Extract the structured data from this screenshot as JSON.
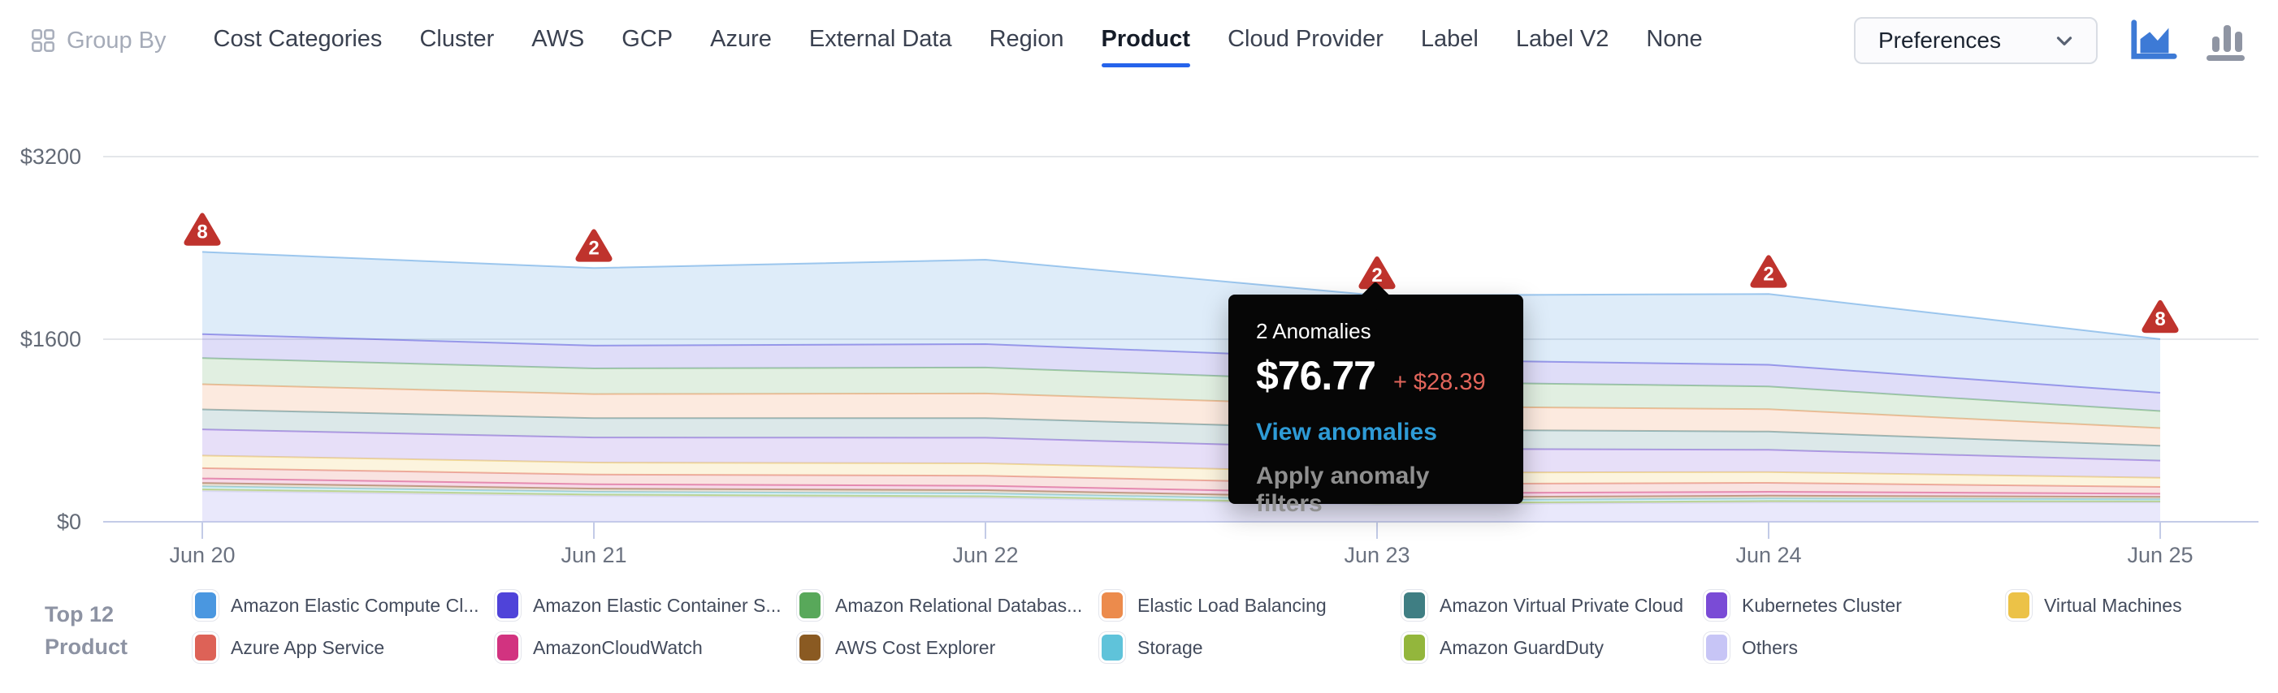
{
  "header": {
    "group_by": {
      "label": "Group By"
    },
    "tabs": [
      {
        "label": "Cost Categories"
      },
      {
        "label": "Cluster"
      },
      {
        "label": "AWS"
      },
      {
        "label": "GCP"
      },
      {
        "label": "Azure"
      },
      {
        "label": "External Data"
      },
      {
        "label": "Region"
      },
      {
        "label": "Product"
      },
      {
        "label": "Cloud Provider"
      },
      {
        "label": "Label"
      },
      {
        "label": "Label V2"
      },
      {
        "label": "None"
      }
    ],
    "selected_tab": "Product",
    "preferences": {
      "label": "Preferences"
    },
    "view_toggles": [
      {
        "name": "area-chart-view",
        "active": true
      },
      {
        "name": "bar-chart-view",
        "active": false
      }
    ]
  },
  "colors": {
    "accent": "#2563eb",
    "anomaly_red": "#bf332d",
    "link_blue": "#2e9bd6",
    "delta_red": "#e2655b",
    "tooltip_bg": "#060606",
    "axis_line": "#c3cbe7",
    "grid_line": "#dcdee4",
    "active_icon_blue": "#3d7ad6",
    "inactive_icon_gray": "#8f95a3"
  },
  "chart_data": {
    "type": "area",
    "stacked": true,
    "title": "",
    "xlabel": "",
    "ylabel": "",
    "x": [
      "Jun 20",
      "Jun 21",
      "Jun 22",
      "Jun 23",
      "Jun 24",
      "Jun 25"
    ],
    "y_ticks": [
      {
        "label": "$0",
        "value": 0
      },
      {
        "label": "$1600",
        "value": 1600
      },
      {
        "label": "$3200",
        "value": 3200
      }
    ],
    "ylim": [
      0,
      3200
    ],
    "grid": true,
    "legend_position": "bottom",
    "series": [
      {
        "name": "Amazon Elastic Compute Cl...",
        "color": "#4a97e0",
        "values": [
          720,
          680,
          740,
          560,
          620,
          470
        ]
      },
      {
        "name": "Amazon Elastic Container S...",
        "color": "#4f43d9",
        "values": [
          210,
          200,
          205,
          195,
          190,
          160
        ]
      },
      {
        "name": "Amazon Relational Databas...",
        "color": "#58a85a",
        "values": [
          230,
          225,
          228,
          215,
          200,
          150
        ]
      },
      {
        "name": "Elastic Load Balancing",
        "color": "#ec8b4c",
        "values": [
          220,
          210,
          215,
          205,
          195,
          155
        ]
      },
      {
        "name": "Amazon Virtual Private Cloud",
        "color": "#3f7e83",
        "values": [
          175,
          170,
          172,
          168,
          160,
          130
        ]
      },
      {
        "name": "Kubernetes Cluster",
        "color": "#7a4bd6",
        "values": [
          230,
          220,
          225,
          210,
          195,
          150
        ]
      },
      {
        "name": "Virtual Machines",
        "color": "#ecc247",
        "values": [
          110,
          105,
          108,
          100,
          95,
          80
        ]
      },
      {
        "name": "Azure App Service",
        "color": "#dd6257",
        "values": [
          90,
          85,
          88,
          82,
          78,
          60
        ]
      },
      {
        "name": "AmazonCloudWatch",
        "color": "#d23380",
        "values": [
          40,
          38,
          39,
          36,
          34,
          28
        ]
      },
      {
        "name": "AWS Cost Explorer",
        "color": "#8a5a22",
        "values": [
          30,
          28,
          29,
          27,
          25,
          20
        ]
      },
      {
        "name": "Storage",
        "color": "#5fc3da",
        "values": [
          25,
          24,
          24,
          23,
          22,
          18
        ]
      },
      {
        "name": "Amazon GuardDuty",
        "color": "#93b63c",
        "values": [
          15,
          14,
          14,
          13,
          12,
          10
        ]
      },
      {
        "name": "Others",
        "color": "#c7c5f6",
        "values": [
          270,
          225,
          210,
          150,
          170,
          170
        ],
        "fill_opacity": 0.4
      }
    ],
    "anomalies": [
      {
        "x": "Jun 20",
        "count": 8
      },
      {
        "x": "Jun 21",
        "count": 2
      },
      {
        "x": "Jun 23",
        "count": 2
      },
      {
        "x": "Jun 24",
        "count": 2
      },
      {
        "x": "Jun 25",
        "count": 8
      }
    ]
  },
  "tooltip": {
    "title": "2 Anomalies",
    "value": "$76.77",
    "delta": "+ $28.39",
    "link": "View anomalies",
    "action": "Apply anomaly filters",
    "anchor_x": "Jun 23"
  },
  "legend": {
    "title_line1": "Top 12",
    "title_line2": "Product"
  }
}
